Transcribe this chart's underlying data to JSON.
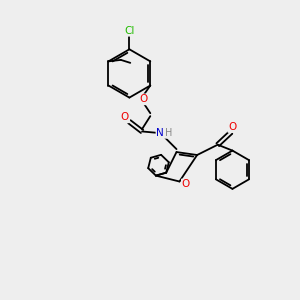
{
  "background_color": "#eeeeee",
  "bond_color": "#000000",
  "atom_colors": {
    "O": "#ee0000",
    "N": "#0000cc",
    "Cl": "#22bb00",
    "C": "#000000",
    "H": "#888888"
  },
  "figsize": [
    3.0,
    3.0
  ],
  "dpi": 100
}
